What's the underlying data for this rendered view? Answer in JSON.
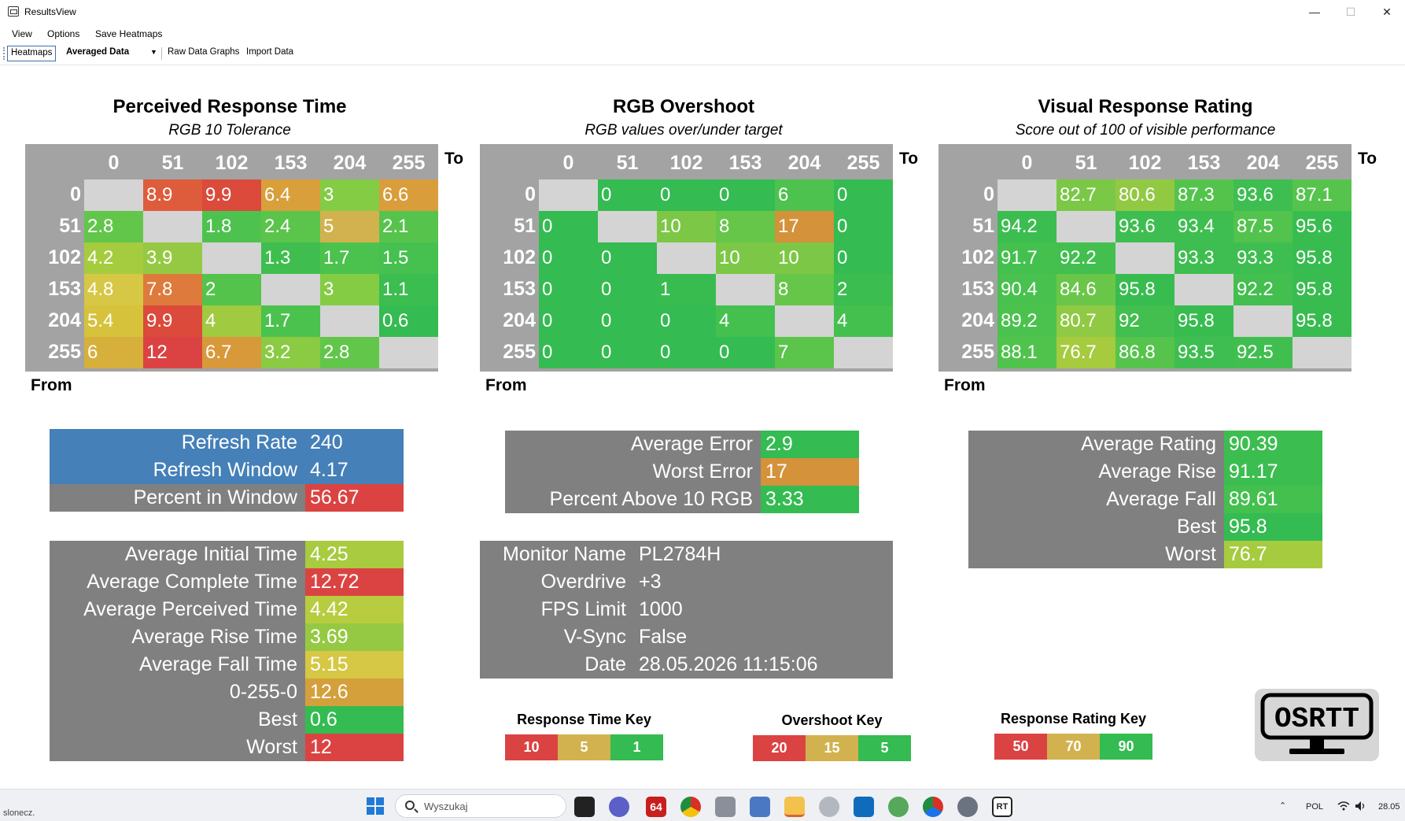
{
  "window": {
    "title": "ResultsView",
    "minimize": "—",
    "maximize": "☐",
    "close": "✕"
  },
  "menu": [
    "View",
    "Options",
    "Save Heatmaps"
  ],
  "toolbar": {
    "tab_heatmaps": "Heatmaps",
    "select_value": "Averaged Data",
    "tab_raw": "Raw Data Graphs",
    "tab_import": "Import Data"
  },
  "heatmaps": [
    {
      "title": "Perceived Response Time",
      "subtitle": "RGB 10 Tolerance",
      "to_label": "To",
      "from_label": "From",
      "columns": [
        "0",
        "51",
        "102",
        "153",
        "204",
        "255"
      ],
      "rows": [
        {
          "label": "0",
          "cells": [
            "",
            "8.9",
            "9.9",
            "6.4",
            "3",
            "6.6"
          ],
          "colors": [
            "#d4d4d4",
            "#de5c3b",
            "#db4a3b",
            "#d89f3b",
            "#84cc44",
            "#d99d3c"
          ]
        },
        {
          "label": "51",
          "cells": [
            "2.8",
            "",
            "1.8",
            "2.4",
            "5",
            "2.1"
          ],
          "colors": [
            "#62c64a",
            "#d4d4d4",
            "#4ec24e",
            "#5ac44b",
            "#d2b24f",
            "#56c44c"
          ]
        },
        {
          "label": "102",
          "cells": [
            "4.2",
            "3.9",
            "",
            "1.3",
            "1.7",
            "1.5"
          ],
          "colors": [
            "#a5cb3f",
            "#96c943",
            "#d4d4d4",
            "#3fbe4f",
            "#4cc24e",
            "#46c04f"
          ]
        },
        {
          "label": "153",
          "cells": [
            "4.8",
            "7.8",
            "2",
            "",
            "3",
            "1.1"
          ],
          "colors": [
            "#d6c744",
            "#de7a3b",
            "#54c34c",
            "#d4d4d4",
            "#84cc44",
            "#3bbd50"
          ]
        },
        {
          "label": "204",
          "cells": [
            "5.4",
            "9.9",
            "4",
            "1.7",
            "",
            "0.6"
          ],
          "colors": [
            "#d6c23b",
            "#db4a3b",
            "#a0ca40",
            "#4cc24e",
            "#d4d4d4",
            "#34bb51"
          ]
        },
        {
          "label": "255",
          "cells": [
            "6",
            "12",
            "6.7",
            "3.2",
            "2.8",
            ""
          ],
          "colors": [
            "#d6b03b",
            "#db4343",
            "#d8993b",
            "#8acb43",
            "#62c64a",
            "#d4d4d4"
          ]
        }
      ]
    },
    {
      "title": "RGB Overshoot",
      "subtitle": "RGB values over/under target",
      "to_label": "To",
      "from_label": "From",
      "columns": [
        "0",
        "51",
        "102",
        "153",
        "204",
        "255"
      ],
      "rows": [
        {
          "label": "0",
          "cells": [
            "",
            "0",
            "0",
            "0",
            "6",
            "0"
          ],
          "colors": [
            "#d4d4d4",
            "#34bb51",
            "#34bb51",
            "#34bb51",
            "#4ec24e",
            "#34bb51"
          ]
        },
        {
          "label": "51",
          "cells": [
            "0",
            "",
            "10",
            "8",
            "17",
            "0"
          ],
          "colors": [
            "#34bb51",
            "#d4d4d4",
            "#7cc846",
            "#66c649",
            "#d4923b",
            "#34bb51"
          ]
        },
        {
          "label": "102",
          "cells": [
            "0",
            "0",
            "",
            "10",
            "10",
            "0"
          ],
          "colors": [
            "#34bb51",
            "#34bb51",
            "#d4d4d4",
            "#7cc846",
            "#7cc846",
            "#34bb51"
          ]
        },
        {
          "label": "153",
          "cells": [
            "0",
            "0",
            "1",
            "",
            "8",
            "2"
          ],
          "colors": [
            "#34bb51",
            "#34bb51",
            "#38bc50",
            "#d4d4d4",
            "#66c649",
            "#3bbd50"
          ]
        },
        {
          "label": "204",
          "cells": [
            "0",
            "0",
            "0",
            "4",
            "",
            "4"
          ],
          "colors": [
            "#34bb51",
            "#34bb51",
            "#34bb51",
            "#44c04f",
            "#d4d4d4",
            "#44c04f"
          ]
        },
        {
          "label": "255",
          "cells": [
            "0",
            "0",
            "0",
            "0",
            "7",
            ""
          ],
          "colors": [
            "#34bb51",
            "#34bb51",
            "#34bb51",
            "#34bb51",
            "#5ac44b",
            "#d4d4d4"
          ]
        }
      ]
    },
    {
      "title": "Visual Response Rating",
      "subtitle": "Score out of 100 of visible performance",
      "to_label": "To",
      "from_label": "From",
      "columns": [
        "0",
        "51",
        "102",
        "153",
        "204",
        "255"
      ],
      "rows": [
        {
          "label": "0",
          "cells": [
            "",
            "82.7",
            "80.6",
            "87.3",
            "93.6",
            "87.1"
          ],
          "colors": [
            "#d4d4d4",
            "#7ac846",
            "#92c943",
            "#54c34c",
            "#3ebe50",
            "#56c44c"
          ]
        },
        {
          "label": "51",
          "cells": [
            "94.2",
            "",
            "93.6",
            "93.4",
            "87.5",
            "95.6"
          ],
          "colors": [
            "#3cbd50",
            "#d4d4d4",
            "#3ebe50",
            "#3ebe50",
            "#52c34d",
            "#38bc50"
          ]
        },
        {
          "label": "102",
          "cells": [
            "91.7",
            "92.2",
            "",
            "93.3",
            "93.3",
            "95.8"
          ],
          "colors": [
            "#44c04f",
            "#42bf4f",
            "#d4d4d4",
            "#3ebe50",
            "#3ebe50",
            "#38bc50"
          ]
        },
        {
          "label": "153",
          "cells": [
            "90.4",
            "84.6",
            "95.8",
            "",
            "92.2",
            "95.8"
          ],
          "colors": [
            "#48c14e",
            "#6ac649",
            "#38bc50",
            "#d4d4d4",
            "#42bf4f",
            "#38bc50"
          ]
        },
        {
          "label": "204",
          "cells": [
            "89.2",
            "80.7",
            "92",
            "95.8",
            "",
            "95.8"
          ],
          "colors": [
            "#4cc24e",
            "#90c943",
            "#42bf4f",
            "#38bc50",
            "#d4d4d4",
            "#38bc50"
          ]
        },
        {
          "label": "255",
          "cells": [
            "88.1",
            "76.7",
            "86.8",
            "93.5",
            "92.5",
            ""
          ],
          "colors": [
            "#50c34d",
            "#a6cb3f",
            "#56c44c",
            "#3ebe50",
            "#40bf50",
            "#d4d4d4"
          ]
        }
      ]
    }
  ],
  "refresh_stats": [
    {
      "label": "Refresh Rate",
      "value": "240",
      "label_bg": "#4580b8",
      "value_bg": "#4580b8"
    },
    {
      "label": "Refresh Window",
      "value": "4.17",
      "label_bg": "#4580b8",
      "value_bg": "#4580b8"
    },
    {
      "label": "Percent in Window",
      "value": "56.67",
      "label_bg": "#808080",
      "value_bg": "#db4343"
    }
  ],
  "response_stats": [
    {
      "label": "Average Initial Time",
      "value": "4.25",
      "value_bg": "#a8cb3f"
    },
    {
      "label": "Average Complete Time",
      "value": "12.72",
      "value_bg": "#db4343"
    },
    {
      "label": "Average Perceived Time",
      "value": "4.42",
      "value_bg": "#b8cc3f"
    },
    {
      "label": "Average Rise Time",
      "value": "3.69",
      "value_bg": "#96c943"
    },
    {
      "label": "Average Fall Time",
      "value": "5.15",
      "value_bg": "#d6c744"
    },
    {
      "label": "0-255-0",
      "value": "12.6",
      "value_bg": "#d4a03b"
    },
    {
      "label": "Best",
      "value": "0.6",
      "value_bg": "#34bb51"
    },
    {
      "label": "Worst",
      "value": "12",
      "value_bg": "#db4343"
    }
  ],
  "overshoot_stats": [
    {
      "label": "Average Error",
      "value": "2.9",
      "value_bg": "#34bb51"
    },
    {
      "label": "Worst Error",
      "value": "17",
      "value_bg": "#d4923b"
    },
    {
      "label": "Percent Above 10 RGB",
      "value": "3.33",
      "value_bg": "#34bb51"
    }
  ],
  "monitor_info": [
    {
      "label": "Monitor Name",
      "value": "PL2784H"
    },
    {
      "label": "Overdrive",
      "value": "+3"
    },
    {
      "label": "FPS Limit",
      "value": "1000"
    },
    {
      "label": "V-Sync",
      "value": "False"
    },
    {
      "label": "Date",
      "value": "28.05.2026 11:15:06"
    }
  ],
  "rating_stats": [
    {
      "label": "Average Rating",
      "value": "90.39",
      "value_bg": "#3cbd50"
    },
    {
      "label": "Average Rise",
      "value": "91.17",
      "value_bg": "#3cbd50"
    },
    {
      "label": "Average Fall",
      "value": "89.61",
      "value_bg": "#44c04f"
    },
    {
      "label": "Best",
      "value": "95.8",
      "value_bg": "#34bb51"
    },
    {
      "label": "Worst",
      "value": "76.7",
      "value_bg": "#a6cb3f"
    }
  ],
  "keys": [
    {
      "title": "Response Time Key",
      "cells": [
        {
          "v": "10",
          "bg": "#db4343"
        },
        {
          "v": "5",
          "bg": "#d2b24f"
        },
        {
          "v": "1",
          "bg": "#34bb51"
        }
      ]
    },
    {
      "title": "Overshoot Key",
      "cells": [
        {
          "v": "20",
          "bg": "#db4343"
        },
        {
          "v": "15",
          "bg": "#d2b24f"
        },
        {
          "v": "5",
          "bg": "#34bb51"
        }
      ]
    },
    {
      "title": "Response Rating Key",
      "cells": [
        {
          "v": "50",
          "bg": "#db4343"
        },
        {
          "v": "70",
          "bg": "#d2b24f"
        },
        {
          "v": "90",
          "bg": "#34bb51"
        }
      ]
    }
  ],
  "logo_text": "OSRTT",
  "taskbar": {
    "status_text": "slonecz.",
    "search_placeholder": "Wyszukaj",
    "lang": "POL",
    "clock": "28.05",
    "badge": "64",
    "rt_label": "RT"
  }
}
